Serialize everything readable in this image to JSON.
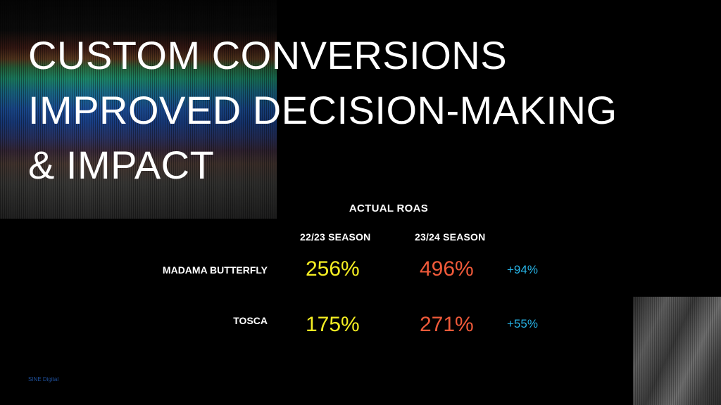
{
  "slide": {
    "title_lines": [
      "CUSTOM CONVERSIONS",
      "IMPROVED DECISION-MAKING",
      "& IMPACT"
    ],
    "table": {
      "title": "ACTUAL ROAS",
      "columns": [
        "22/23 SEASON",
        "23/24 SEASON"
      ],
      "rows": [
        {
          "label": "MADAMA BUTTERFLY",
          "season_22_23": "256%",
          "season_23_24": "496%",
          "change": "+94%"
        },
        {
          "label": "TOSCA",
          "season_22_23": "175%",
          "season_23_24": "271%",
          "change": "+55%"
        }
      ]
    },
    "footer": "SINE Digital"
  },
  "colors": {
    "background": "#000000",
    "season_22_23": "#f5ee22",
    "season_23_24": "#f05a3a",
    "change": "#27b3e6"
  }
}
